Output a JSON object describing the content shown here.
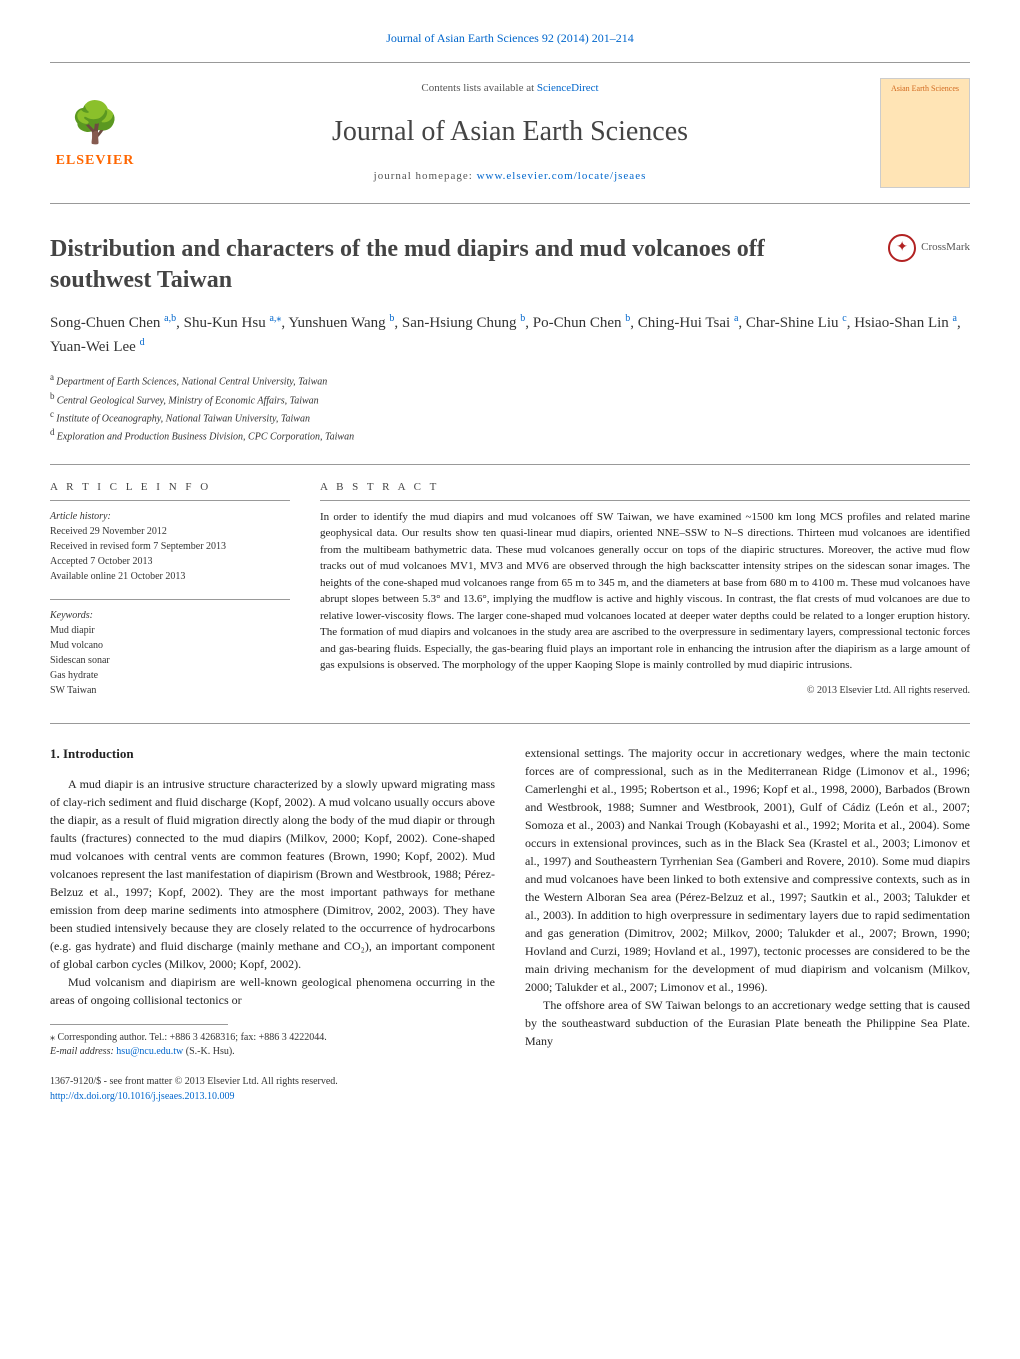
{
  "top_link": "Journal of Asian Earth Sciences 92 (2014) 201–214",
  "header": {
    "contents_prefix": "Contents lists available at ",
    "contents_link": "ScienceDirect",
    "journal": "Journal of Asian Earth Sciences",
    "homepage_prefix": "journal homepage: ",
    "homepage_link": "www.elsevier.com/locate/jseaes",
    "publisher": "ELSEVIER",
    "cover_label": "Asian Earth Sciences"
  },
  "title": "Distribution and characters of the mud diapirs and mud volcanoes off southwest Taiwan",
  "crossmark": "CrossMark",
  "authors_html": "Song-Chuen Chen",
  "authors": [
    {
      "name": "Song-Chuen Chen",
      "aff": "a,b"
    },
    {
      "name": "Shu-Kun Hsu",
      "aff": "a,",
      "corr": true
    },
    {
      "name": "Yunshuen Wang",
      "aff": "b"
    },
    {
      "name": "San-Hsiung Chung",
      "aff": "b"
    },
    {
      "name": "Po-Chun Chen",
      "aff": "b"
    },
    {
      "name": "Ching-Hui Tsai",
      "aff": "a"
    },
    {
      "name": "Char-Shine Liu",
      "aff": "c"
    },
    {
      "name": "Hsiao-Shan Lin",
      "aff": "a"
    },
    {
      "name": "Yuan-Wei Lee",
      "aff": "d"
    }
  ],
  "affiliations": [
    {
      "sup": "a",
      "text": "Department of Earth Sciences, National Central University, Taiwan"
    },
    {
      "sup": "b",
      "text": "Central Geological Survey, Ministry of Economic Affairs, Taiwan"
    },
    {
      "sup": "c",
      "text": "Institute of Oceanography, National Taiwan University, Taiwan"
    },
    {
      "sup": "d",
      "text": "Exploration and Production Business Division, CPC Corporation, Taiwan"
    }
  ],
  "info": {
    "heading": "A R T I C L E   I N F O",
    "history_label": "Article history:",
    "history": [
      "Received 29 November 2012",
      "Received in revised form 7 September 2013",
      "Accepted 7 October 2013",
      "Available online 21 October 2013"
    ],
    "keywords_label": "Keywords:",
    "keywords": [
      "Mud diapir",
      "Mud volcano",
      "Sidescan sonar",
      "Gas hydrate",
      "SW Taiwan"
    ]
  },
  "abstract": {
    "heading": "A B S T R A C T",
    "text": "In order to identify the mud diapirs and mud volcanoes off SW Taiwan, we have examined ~1500 km long MCS profiles and related marine geophysical data. Our results show ten quasi-linear mud diapirs, oriented NNE–SSW to N–S directions. Thirteen mud volcanoes are identified from the multibeam bathymetric data. These mud volcanoes generally occur on tops of the diapiric structures. Moreover, the active mud flow tracks out of mud volcanoes MV1, MV3 and MV6 are observed through the high backscatter intensity stripes on the sidescan sonar images. The heights of the cone-shaped mud volcanoes range from 65 m to 345 m, and the diameters at base from 680 m to 4100 m. These mud volcanoes have abrupt slopes between 5.3° and 13.6°, implying the mudflow is active and highly viscous. In contrast, the flat crests of mud volcanoes are due to relative lower-viscosity flows. The larger cone-shaped mud volcanoes located at deeper water depths could be related to a longer eruption history. The formation of mud diapirs and volcanoes in the study area are ascribed to the overpressure in sedimentary layers, compressional tectonic forces and gas-bearing fluids. Especially, the gas-bearing fluid plays an important role in enhancing the intrusion after the diapirism as a large amount of gas expulsions is observed. The morphology of the upper Kaoping Slope is mainly controlled by mud diapiric intrusions.",
    "copyright": "© 2013 Elsevier Ltd. All rights reserved."
  },
  "intro": {
    "heading": "1. Introduction",
    "p1": "A mud diapir is an intrusive structure characterized by a slowly upward migrating mass of clay-rich sediment and fluid discharge (Kopf, 2002). A mud volcano usually occurs above the diapir, as a result of fluid migration directly along the body of the mud diapir or through faults (fractures) connected to the mud diapirs (Milkov, 2000; Kopf, 2002). Cone-shaped mud volcanoes with central vents are common features (Brown, 1990; Kopf, 2002). Mud volcanoes represent the last manifestation of diapirism (Brown and Westbrook, 1988; Pérez-Belzuz et al., 1997; Kopf, 2002). They are the most important pathways for methane emission from deep marine sediments into atmosphere (Dimitrov, 2002, 2003). They have been studied intensively because they are closely related to the occurrence of hydrocarbons (e.g. gas hydrate) and fluid discharge (mainly methane and CO₂), an important component of global carbon cycles (Milkov, 2000; Kopf, 2002).",
    "p2": "Mud volcanism and diapirism are well-known geological phenomena occurring in the areas of ongoing collisional tectonics or",
    "p3": "extensional settings. The majority occur in accretionary wedges, where the main tectonic forces are of compressional, such as in the Mediterranean Ridge (Limonov et al., 1996; Camerlenghi et al., 1995; Robertson et al., 1996; Kopf et al., 1998, 2000), Barbados (Brown and Westbrook, 1988; Sumner and Westbrook, 2001), Gulf of Cádiz (León et al., 2007; Somoza et al., 2003) and Nankai Trough (Kobayashi et al., 1992; Morita et al., 2004). Some occurs in extensional provinces, such as in the Black Sea (Krastel et al., 2003; Limonov et al., 1997) and Southeastern Tyrrhenian Sea (Gamberi and Rovere, 2010). Some mud diapirs and mud volcanoes have been linked to both extensive and compressive contexts, such as in the Western Alboran Sea area (Pérez-Belzuz et al., 1997; Sautkin et al., 2003; Talukder et al., 2003). In addition to high overpressure in sedimentary layers due to rapid sedimentation and gas generation (Dimitrov, 2002; Milkov, 2000; Talukder et al., 2007; Brown, 1990; Hovland and Curzi, 1989; Hovland et al., 1997), tectonic processes are considered to be the main driving mechanism for the development of mud diapirism and volcanism (Milkov, 2000; Talukder et al., 2007; Limonov et al., 1996).",
    "p4": "The offshore area of SW Taiwan belongs to an accretionary wedge setting that is caused by the southeastward subduction of the Eurasian Plate beneath the Philippine Sea Plate. Many"
  },
  "footnote": {
    "corr": "⁎ Corresponding author. Tel.: +886 3 4268316; fax: +886 3 4222044.",
    "email_label": "E-mail address: ",
    "email": "hsu@ncu.edu.tw",
    "email_suffix": " (S.-K. Hsu)."
  },
  "bottom": {
    "issn": "1367-9120/$ - see front matter © 2013 Elsevier Ltd. All rights reserved.",
    "doi": "http://dx.doi.org/10.1016/j.jseaes.2013.10.009"
  },
  "colors": {
    "link": "#0066cc",
    "text": "#222222",
    "border": "#999999",
    "elsevier": "#ff6600"
  }
}
